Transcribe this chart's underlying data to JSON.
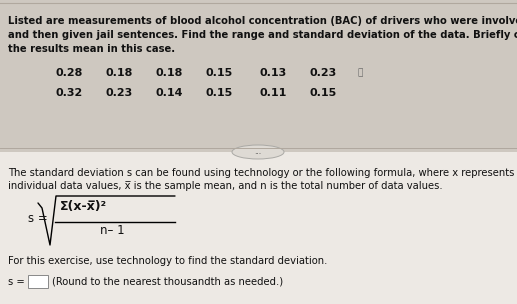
{
  "bg_top": "#cec8c0",
  "bg_bottom": "#ede9e4",
  "line1": "Listed are measurements of blood alcohol concentration (BAC) of drivers who were involved in fatal crash",
  "line2": "and then given jail sentences. Find the range and standard deviation of the data. Briefly comment on what",
  "line3": "the results mean in this case.",
  "data_row1_vals": [
    "0.28",
    "0.18",
    "0.18",
    "0.15",
    "0.13",
    "0.23"
  ],
  "data_row2_vals": [
    "0.32",
    "0.23",
    "0.14",
    "0.15",
    "0.11",
    "0.15"
  ],
  "separator_text": "...",
  "desc_line1": "The standard deviation s can be found using technology or the following formula, where x represents",
  "desc_line2": "individual data values, x̅ is the sample mean, and n is the total number of data values.",
  "formula_label": "s =",
  "formula_numerator": "Σ(x-x̅)²",
  "formula_denominator": "n– 1",
  "tech_line": "For this exercise, use technology to find the standard deviation.",
  "round_note": "(Round to the nearest thousandth as needed.)",
  "fs_body": 7.2,
  "fs_data": 8.0,
  "fs_formula": 9.5,
  "text_color": "#111111"
}
